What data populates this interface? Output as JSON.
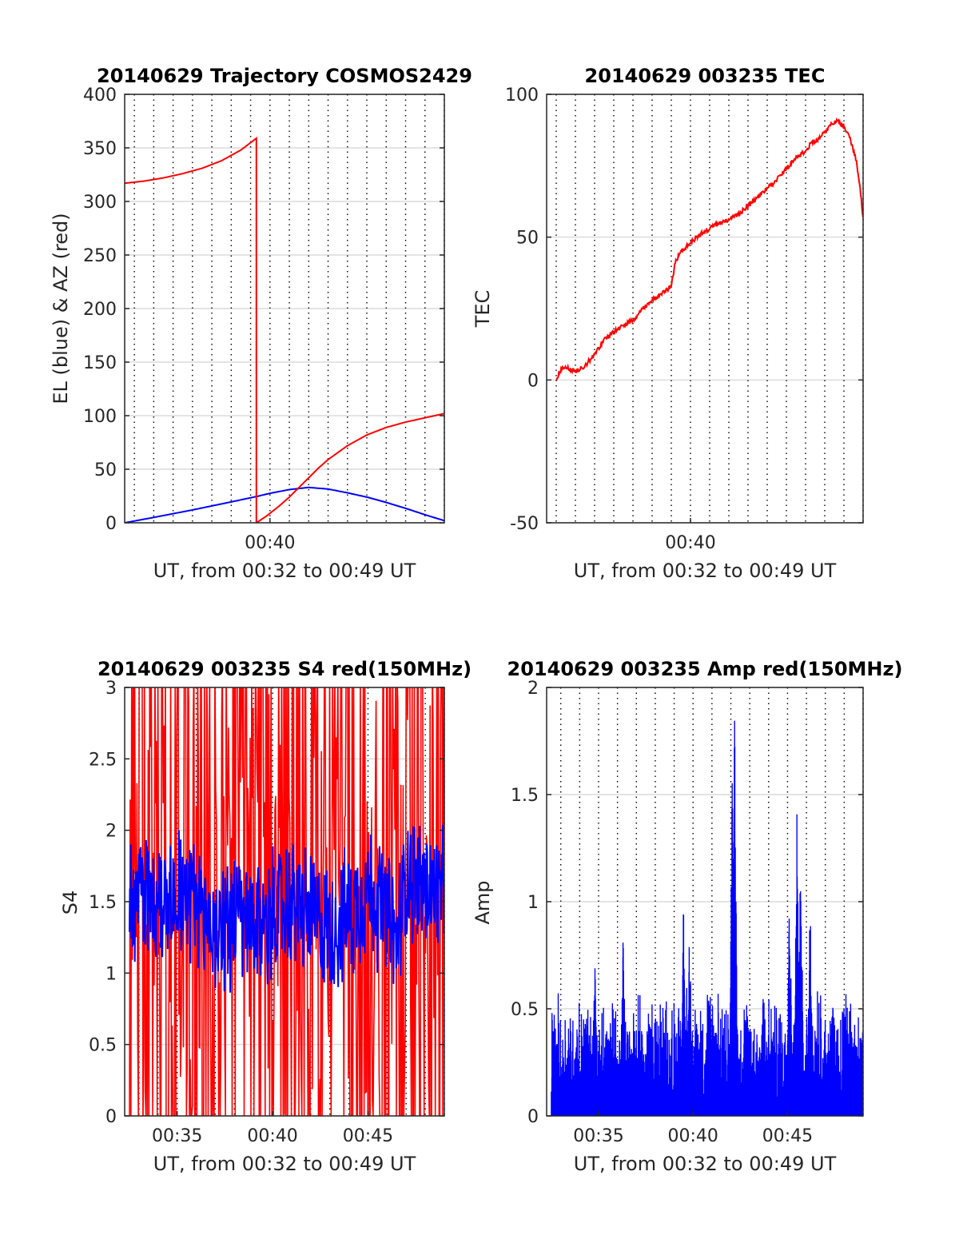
{
  "colors": {
    "red": "#ff0000",
    "blue": "#0000ff",
    "grid": "#dcdcdc",
    "vline": "#000000",
    "axis": "#262626"
  },
  "chart_data": [
    {
      "type": "line",
      "title": "20140629 Trajectory COSMOS2429",
      "xlabel": "UT, from 00:32 to 00:49 UT",
      "ylabel": "EL (blue) & AZ (red)",
      "xlim": [
        32.5,
        49
      ],
      "ylim": [
        0,
        400
      ],
      "yticks": [
        0,
        50,
        100,
        150,
        200,
        250,
        300,
        350,
        400
      ],
      "xtick_labels": [
        {
          "x": 40,
          "label": "00:40"
        }
      ],
      "grid": true,
      "series": [
        {
          "color": "blue",
          "style": "smooth",
          "x": [
            32.5,
            34,
            36,
            38,
            39.3,
            40,
            41,
            42,
            43,
            44,
            45,
            46,
            47,
            48,
            49
          ],
          "y": [
            0,
            5,
            12,
            19.5,
            24.5,
            27.5,
            31,
            33,
            31.5,
            28,
            24,
            19,
            13.5,
            7.5,
            2
          ]
        },
        {
          "color": "red",
          "style": "smooth",
          "x": [
            32.5,
            33.5,
            34.5,
            35.5,
            36.5,
            37.5,
            38.5,
            39.3,
            39.3,
            39.8,
            40.5,
            41,
            41.5,
            42,
            42.5,
            43,
            44,
            45,
            46,
            47,
            48,
            49
          ],
          "y": [
            317,
            319,
            322,
            326,
            331,
            338,
            348,
            359,
            0,
            6,
            16,
            24,
            33,
            42,
            51,
            59,
            72,
            82,
            89,
            94,
            98,
            102
          ]
        }
      ]
    },
    {
      "type": "line",
      "title": "20140629 003235 TEC",
      "xlabel": "UT, from 00:32 to 00:49 UT",
      "ylabel": "TEC",
      "xlim": [
        32.5,
        49
      ],
      "ylim": [
        -50,
        100
      ],
      "yticks": [
        -50,
        0,
        50,
        100
      ],
      "xtick_labels": [
        {
          "x": 40,
          "label": "00:40"
        }
      ],
      "grid": true,
      "series": [
        {
          "color": "red",
          "noise": 1.6,
          "x": [
            33,
            33.3,
            33.6,
            34,
            34.5,
            35,
            35.5,
            36,
            36.5,
            37,
            37.5,
            38,
            38.5,
            39,
            39.2,
            39.5,
            40,
            40.5,
            41,
            41.5,
            42,
            42.5,
            43,
            43.5,
            44,
            44.5,
            45,
            45.5,
            46,
            46.3,
            46.6,
            47,
            47.3,
            47.6,
            48,
            48.3,
            48.6,
            48.8,
            49
          ],
          "y": [
            0,
            4,
            4,
            3,
            5,
            9,
            14,
            17,
            19,
            21,
            25,
            28,
            30,
            33,
            41,
            45,
            48,
            51,
            53,
            55,
            56,
            58,
            61,
            64,
            67,
            70,
            74,
            78,
            80,
            83,
            84,
            87,
            89,
            91,
            89,
            85,
            78,
            70,
            56
          ]
        }
      ]
    },
    {
      "type": "line",
      "title": "20140629 003235 S4 red(150MHz)",
      "xlabel": "UT, from 00:32 to 00:49 UT",
      "ylabel": "S4",
      "xlim": [
        32.25,
        49
      ],
      "ylim": [
        0,
        3
      ],
      "yticks": [
        0,
        0.5,
        1,
        1.5,
        2,
        2.5,
        3
      ],
      "xtick_labels": [
        {
          "x": 35,
          "label": "00:35"
        },
        {
          "x": 40,
          "label": "00:40"
        },
        {
          "x": 45,
          "label": "00:45"
        }
      ],
      "grid": true,
      "series": [
        {
          "color": "red",
          "style": "noisy-s4",
          "xrange": [
            32.5,
            49
          ],
          "base": 1.5,
          "spread": 1.6
        },
        {
          "color": "blue",
          "style": "noisy",
          "xrange": [
            32.5,
            49
          ],
          "x": [
            32.5,
            33,
            34,
            35,
            36,
            37,
            38,
            39,
            40,
            41,
            42,
            43,
            44,
            45,
            46,
            46.5,
            47,
            48,
            49
          ],
          "y": [
            1.5,
            1.6,
            1.5,
            1.6,
            1.5,
            1.3,
            1.4,
            1.3,
            1.4,
            1.5,
            1.4,
            1.3,
            1.4,
            1.6,
            1.4,
            1.2,
            1.7,
            1.6,
            1.5
          ],
          "spread": 0.55
        }
      ]
    },
    {
      "type": "bar",
      "title": "20140629 003235 Amp red(150MHz)",
      "xlabel": "UT, from 00:32 to 00:49 UT",
      "ylabel": "Amp",
      "xlim": [
        32.25,
        49
      ],
      "ylim": [
        0,
        2
      ],
      "yticks": [
        0,
        0.5,
        1,
        1.5,
        2
      ],
      "xtick_labels": [
        {
          "x": 35,
          "label": "00:35"
        },
        {
          "x": 40,
          "label": "00:40"
        },
        {
          "x": 45,
          "label": "00:45"
        }
      ],
      "grid": true,
      "series": [
        {
          "color": "blue",
          "style": "spiky",
          "xrange": [
            32.5,
            49
          ],
          "baseline_max": 0.55,
          "peaks": [
            {
              "x": 34.8,
              "y": 0.75
            },
            {
              "x": 36.3,
              "y": 0.86
            },
            {
              "x": 39.5,
              "y": 1.03
            },
            {
              "x": 39.8,
              "y": 1.0
            },
            {
              "x": 42.1,
              "y": 1.92
            },
            {
              "x": 42.2,
              "y": 1.88
            },
            {
              "x": 45.5,
              "y": 1.45
            },
            {
              "x": 45.7,
              "y": 1.3
            },
            {
              "x": 45.1,
              "y": 1.2
            },
            {
              "x": 46.2,
              "y": 1.05
            },
            {
              "x": 40.9,
              "y": 0.6
            },
            {
              "x": 43.7,
              "y": 0.68
            },
            {
              "x": 47.4,
              "y": 0.68
            },
            {
              "x": 48.0,
              "y": 0.62
            }
          ]
        }
      ]
    }
  ]
}
